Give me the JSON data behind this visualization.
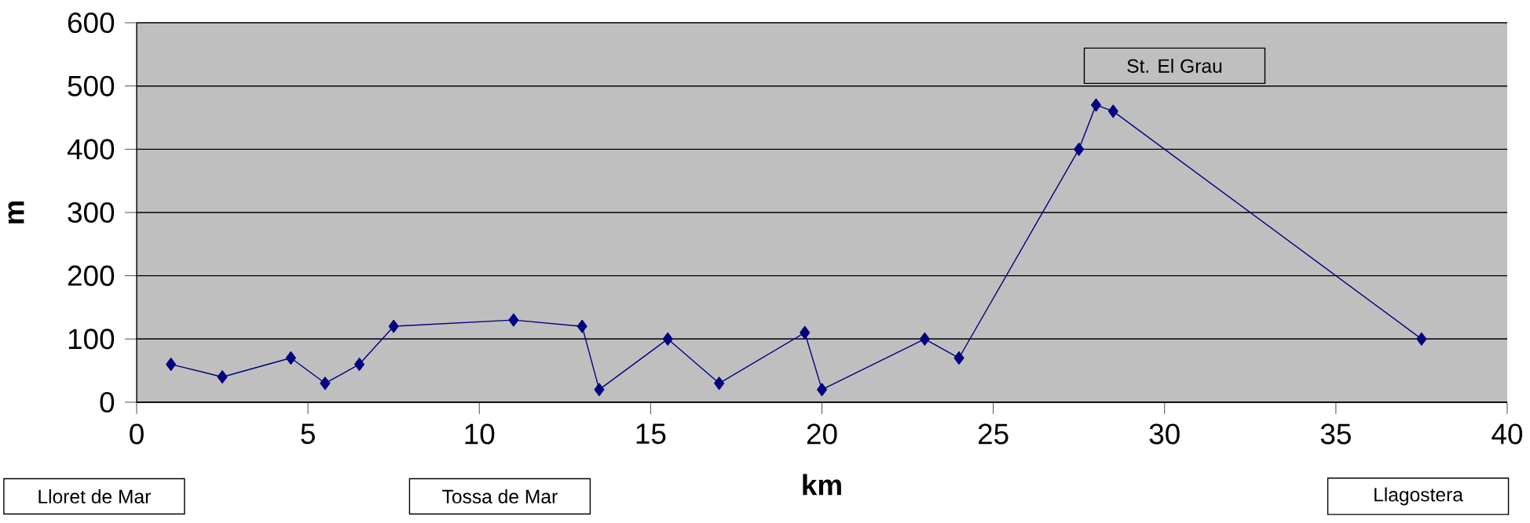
{
  "chart_data": {
    "type": "line",
    "xlabel": "km",
    "ylabel": "m",
    "x": [
      1,
      2.5,
      4.5,
      5.5,
      6.5,
      7.5,
      11,
      13,
      13.5,
      15.5,
      17,
      19.5,
      20,
      23,
      24,
      27.5,
      28,
      28.5,
      37.5
    ],
    "series": [
      {
        "color": "#000080",
        "values": [
          60,
          40,
          70,
          30,
          60,
          120,
          130,
          120,
          20,
          100,
          30,
          110,
          20,
          100,
          70,
          400,
          470,
          460,
          100
        ]
      }
    ],
    "xlim": [
      0,
      40
    ],
    "xticks": [
      0,
      5,
      10,
      15,
      20,
      25,
      30,
      35,
      40
    ],
    "ylim": [
      0,
      600
    ],
    "yticks": [
      0,
      100,
      200,
      300,
      400,
      500,
      600
    ],
    "grid": "y",
    "marker": "diamond",
    "annotations": [
      "Lloret de Mar",
      "Tossa de Mar",
      {
        "text": "St. El Grau",
        "x": 28,
        "y": 470
      },
      "Llagostera"
    ]
  }
}
